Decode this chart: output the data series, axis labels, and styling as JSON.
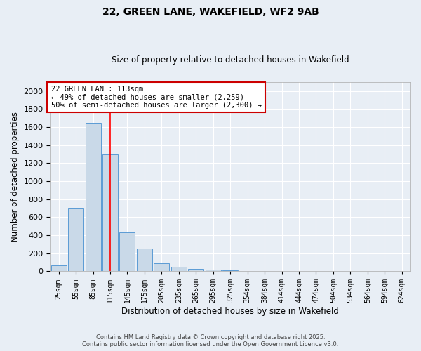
{
  "title1": "22, GREEN LANE, WAKEFIELD, WF2 9AB",
  "title2": "Size of property relative to detached houses in Wakefield",
  "xlabel": "Distribution of detached houses by size in Wakefield",
  "ylabel": "Number of detached properties",
  "categories": [
    "25sqm",
    "55sqm",
    "85sqm",
    "115sqm",
    "145sqm",
    "175sqm",
    "205sqm",
    "235sqm",
    "265sqm",
    "295sqm",
    "325sqm",
    "354sqm",
    "384sqm",
    "414sqm",
    "444sqm",
    "474sqm",
    "504sqm",
    "534sqm",
    "564sqm",
    "594sqm",
    "624sqm"
  ],
  "values": [
    65,
    695,
    1650,
    1300,
    435,
    255,
    90,
    50,
    30,
    20,
    10,
    5,
    3,
    2,
    1,
    1,
    0,
    0,
    0,
    0,
    1
  ],
  "bar_color": "#c9d9e8",
  "bar_edge_color": "#5b9bd5",
  "red_line_x": 3.0,
  "annotation_text": "22 GREEN LANE: 113sqm\n← 49% of detached houses are smaller (2,259)\n50% of semi-detached houses are larger (2,300) →",
  "annotation_box_color": "#ffffff",
  "annotation_box_edge": "#cc0000",
  "background_color": "#e8eef5",
  "grid_color": "#ffffff",
  "ylim": [
    0,
    2100
  ],
  "yticks": [
    0,
    200,
    400,
    600,
    800,
    1000,
    1200,
    1400,
    1600,
    1800,
    2000
  ],
  "footer1": "Contains HM Land Registry data © Crown copyright and database right 2025.",
  "footer2": "Contains public sector information licensed under the Open Government Licence v3.0."
}
